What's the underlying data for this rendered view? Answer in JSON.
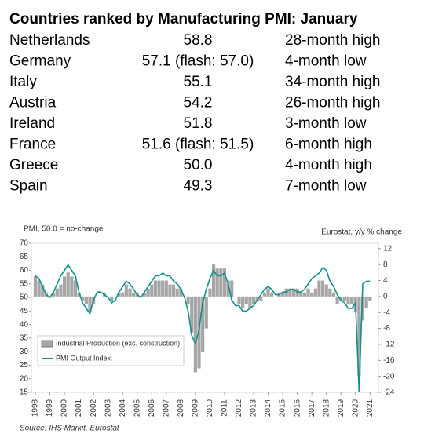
{
  "table": {
    "title": "Countries ranked by Manufacturing PMI: January",
    "rows": [
      [
        "Netherlands",
        "58.8",
        "28-month high"
      ],
      [
        "Germany",
        "57.1 (flash: 57.0)",
        "4-month low"
      ],
      [
        "Italy",
        "55.1",
        "34-month high"
      ],
      [
        "Austria",
        "54.2",
        "26-month high"
      ],
      [
        "Ireland",
        "51.8",
        "3-month low"
      ],
      [
        "France",
        "51.6 (flash: 51.5)",
        "6-month high"
      ],
      [
        "Greece",
        "50.0",
        "4-month high"
      ],
      [
        "Spain",
        "49.3",
        "7-month low"
      ]
    ]
  },
  "chart_data": {
    "type": "combo",
    "y_label": "PMI, 50.0 = no-change",
    "y2_label": "Eurostat, y/y % change",
    "source": "Source: IHS Markit, Eurostat",
    "x": [
      1998,
      1998.25,
      1998.5,
      1998.75,
      1999,
      1999.25,
      1999.5,
      1999.75,
      2000,
      2000.25,
      2000.5,
      2000.75,
      2001,
      2001.25,
      2001.5,
      2001.75,
      2002,
      2002.25,
      2002.5,
      2002.75,
      2003,
      2003.25,
      2003.5,
      2003.75,
      2004,
      2004.25,
      2004.5,
      2004.75,
      2005,
      2005.25,
      2005.5,
      2005.75,
      2006,
      2006.25,
      2006.5,
      2006.75,
      2007,
      2007.25,
      2007.5,
      2007.75,
      2008,
      2008.25,
      2008.5,
      2008.75,
      2009,
      2009.25,
      2009.5,
      2009.75,
      2010,
      2010.25,
      2010.5,
      2010.75,
      2011,
      2011.25,
      2011.5,
      2011.75,
      2012,
      2012.25,
      2012.5,
      2012.75,
      2013,
      2013.25,
      2013.5,
      2013.75,
      2014,
      2014.25,
      2014.5,
      2014.75,
      2015,
      2015.25,
      2015.5,
      2015.75,
      2016,
      2016.25,
      2016.5,
      2016.75,
      2017,
      2017.25,
      2017.5,
      2017.75,
      2018,
      2018.25,
      2018.5,
      2018.75,
      2019,
      2019.25,
      2019.5,
      2019.75,
      2020,
      2020.25,
      2020.5,
      2020.75,
      2021
    ],
    "series": [
      {
        "name": "Industrial Production (exc. construction)",
        "type": "bar",
        "axis": "y2",
        "color": "#a6a6a6",
        "values": [
          5,
          4,
          3,
          1,
          0,
          1,
          2,
          3,
          5,
          6,
          5,
          4,
          1,
          -1,
          -2,
          -4,
          -2,
          0,
          0,
          1,
          0,
          -1,
          0,
          1,
          1,
          3,
          2,
          1,
          1,
          0,
          1,
          2,
          3,
          4,
          4,
          4,
          4,
          3,
          3,
          2,
          2,
          0,
          -2,
          -9,
          -19,
          -18,
          -14,
          -8,
          2,
          8,
          7,
          7,
          7,
          4,
          4,
          0,
          -2,
          -3,
          -2,
          -3,
          -2,
          -1,
          -1,
          1,
          2,
          1,
          0,
          1,
          1,
          2,
          2,
          2,
          2,
          1,
          1,
          2,
          1,
          2,
          4,
          4,
          3,
          2,
          1,
          -2,
          -1,
          -1,
          -2,
          -2,
          -4,
          -20,
          -6,
          -3,
          -1
        ]
      },
      {
        "name": "PMI Output Index",
        "type": "line",
        "color": "#14908c",
        "values": [
          58,
          57,
          54,
          51,
          50,
          52,
          55,
          58,
          60,
          62,
          60,
          58,
          52,
          48,
          46,
          44,
          49,
          52,
          52,
          51,
          50,
          48,
          49,
          52,
          54,
          56,
          55,
          53,
          51,
          50,
          52,
          54,
          56,
          58,
          58,
          59,
          58,
          58,
          56,
          55,
          53,
          50,
          45,
          36,
          33,
          38,
          48,
          53,
          57,
          60,
          58,
          58,
          59,
          55,
          49,
          47,
          47,
          45,
          45,
          46,
          47,
          49,
          51,
          53,
          54,
          53,
          51,
          51,
          52,
          52,
          53,
          53,
          52,
          52,
          53,
          55,
          57,
          58,
          59,
          61,
          60,
          56,
          54,
          51,
          49,
          48,
          46,
          46,
          48,
          15,
          55,
          56,
          56
        ]
      }
    ],
    "xlim": [
      1998,
      2021.2
    ],
    "xticks": [
      1998,
      1999,
      2000,
      2001,
      2002,
      2003,
      2004,
      2005,
      2006,
      2007,
      2008,
      2009,
      2010,
      2011,
      2012,
      2013,
      2014,
      2015,
      2016,
      2017,
      2018,
      2019,
      2020,
      2021
    ],
    "ylim": [
      15,
      70
    ],
    "yticks": [
      15,
      20,
      25,
      30,
      35,
      40,
      45,
      50,
      55,
      60,
      65,
      70
    ],
    "y2lim": [
      -24,
      13.333
    ],
    "y2ticks": [
      12,
      8,
      4,
      0,
      -4,
      -8,
      -12,
      -16,
      -20,
      -24
    ]
  }
}
